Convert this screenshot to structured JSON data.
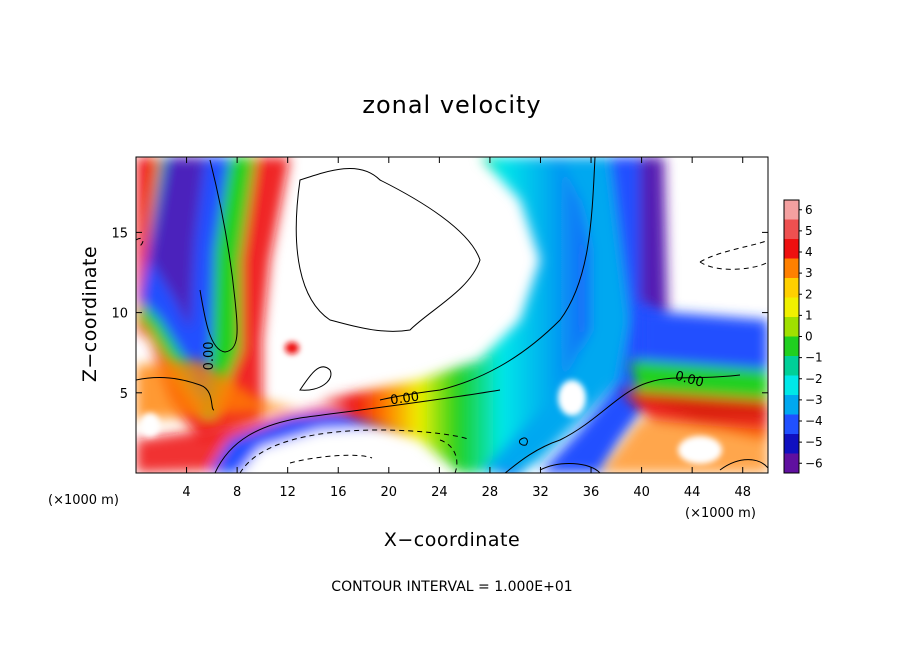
{
  "chart_data": {
    "type": "heatmap",
    "title": "zonal velocity",
    "xlabel": "X−coordinate",
    "ylabel": "Z−coordinate",
    "x_unit_label": "(×1000 m)",
    "z_unit_label": "(×1000 m)",
    "footer": "CONTOUR INTERVAL = 1.000E+01",
    "xlim": [
      0,
      50
    ],
    "ylim": [
      0,
      19.7
    ],
    "x_ticks": [
      4,
      8,
      12,
      16,
      20,
      24,
      28,
      32,
      36,
      40,
      44,
      48
    ],
    "y_ticks": [
      5,
      10,
      15
    ],
    "colorbar": {
      "levels": [
        6,
        5,
        4,
        3,
        2,
        1,
        0,
        -1,
        -2,
        -3,
        -4,
        -5,
        -6
      ],
      "colors": [
        "#f4a0a0",
        "#ee5050",
        "#ee1010",
        "#ff8000",
        "#ffd000",
        "#f0f000",
        "#a0e000",
        "#20d020",
        "#00d098",
        "#00e8e8",
        "#00a8f0",
        "#2050ff",
        "#1010c0",
        "#6010a0"
      ]
    },
    "contour_labels": [
      {
        "text": "0.00",
        "x": 6.1,
        "z": 7.3,
        "rotation": -90
      },
      {
        "text": "0.00",
        "x": 21.3,
        "z": 4.4,
        "rotation": -8
      },
      {
        "text": "0.00",
        "x": 43.7,
        "z": 5.6,
        "rotation": 15
      }
    ]
  }
}
